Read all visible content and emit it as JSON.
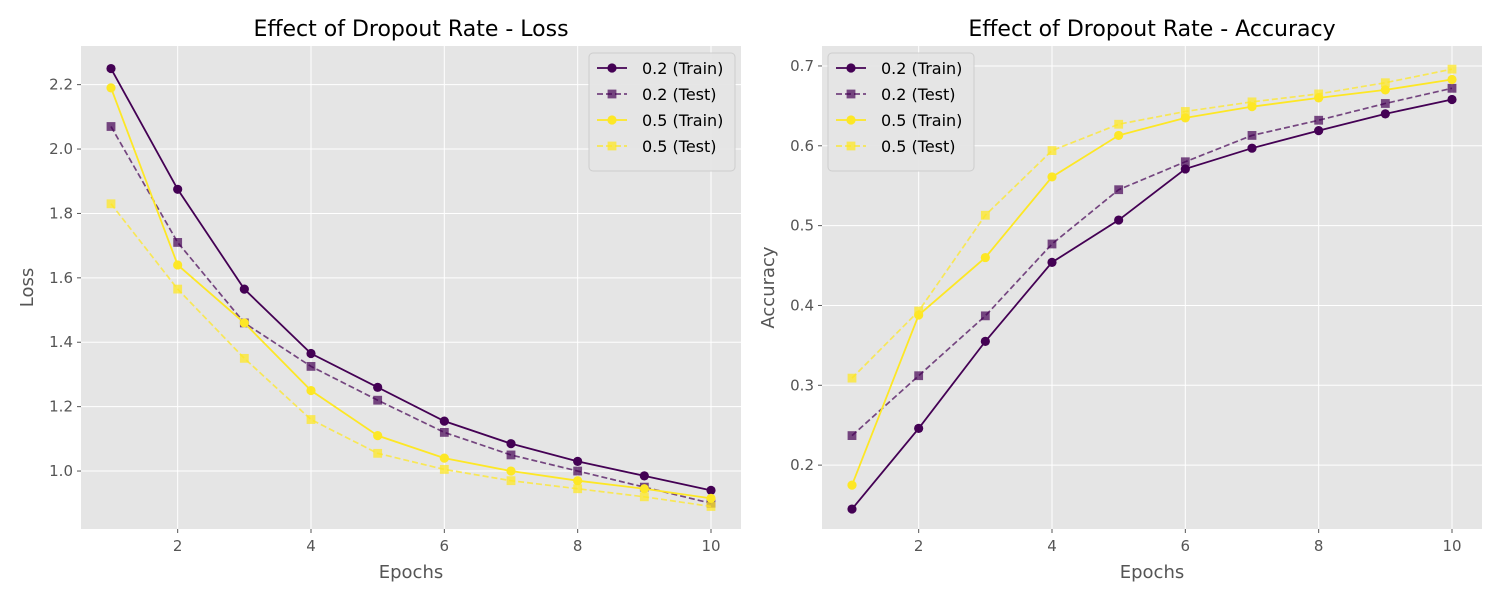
{
  "chart_data": [
    {
      "type": "line",
      "title": "Effect of Dropout Rate - Loss",
      "xlabel": "Epochs",
      "ylabel": "Loss",
      "xlim": [
        0.55,
        10.45
      ],
      "ylim": [
        0.82,
        2.32
      ],
      "xticks": [
        2,
        4,
        6,
        8,
        10
      ],
      "yticks": [
        1.0,
        1.2,
        1.4,
        1.6,
        1.8,
        2.0,
        2.2
      ],
      "grid": true,
      "legend_position": "top-right",
      "x": [
        1,
        2,
        3,
        4,
        5,
        6,
        7,
        8,
        9,
        10
      ],
      "series": [
        {
          "name": "0.2 (Train)",
          "color": "#440154",
          "style": "solid",
          "marker": "circle",
          "values": [
            2.25,
            1.875,
            1.565,
            1.365,
            1.26,
            1.155,
            1.085,
            1.03,
            0.985,
            0.94
          ]
        },
        {
          "name": "0.2 (Test)",
          "color": "#440154",
          "style": "dashed",
          "marker": "square",
          "values": [
            2.07,
            1.71,
            1.46,
            1.325,
            1.22,
            1.12,
            1.05,
            1.0,
            0.95,
            0.9
          ]
        },
        {
          "name": "0.5 (Train)",
          "color": "#fde725",
          "style": "solid",
          "marker": "circle",
          "values": [
            2.19,
            1.64,
            1.46,
            1.25,
            1.11,
            1.04,
            1.0,
            0.97,
            0.945,
            0.915
          ]
        },
        {
          "name": "0.5 (Test)",
          "color": "#fde725",
          "style": "dashed",
          "marker": "square",
          "values": [
            1.83,
            1.565,
            1.35,
            1.16,
            1.055,
            1.005,
            0.97,
            0.945,
            0.92,
            0.89
          ]
        }
      ]
    },
    {
      "type": "line",
      "title": "Effect of Dropout Rate - Accuracy",
      "xlabel": "Epochs",
      "ylabel": "Accuracy",
      "xlim": [
        0.55,
        10.45
      ],
      "ylim": [
        0.12,
        0.725
      ],
      "xticks": [
        2,
        4,
        6,
        8,
        10
      ],
      "yticks": [
        0.2,
        0.3,
        0.4,
        0.5,
        0.6,
        0.7
      ],
      "grid": true,
      "legend_position": "top-left",
      "x": [
        1,
        2,
        3,
        4,
        5,
        6,
        7,
        8,
        9,
        10
      ],
      "series": [
        {
          "name": "0.2 (Train)",
          "color": "#440154",
          "style": "solid",
          "marker": "circle",
          "values": [
            0.145,
            0.246,
            0.355,
            0.454,
            0.507,
            0.571,
            0.597,
            0.619,
            0.64,
            0.658
          ]
        },
        {
          "name": "0.2 (Test)",
          "color": "#440154",
          "style": "dashed",
          "marker": "square",
          "values": [
            0.237,
            0.312,
            0.387,
            0.477,
            0.545,
            0.58,
            0.613,
            0.632,
            0.653,
            0.672
          ]
        },
        {
          "name": "0.5 (Train)",
          "color": "#fde725",
          "style": "solid",
          "marker": "circle",
          "values": [
            0.175,
            0.388,
            0.46,
            0.561,
            0.613,
            0.635,
            0.649,
            0.66,
            0.67,
            0.683
          ]
        },
        {
          "name": "0.5 (Test)",
          "color": "#fde725",
          "style": "dashed",
          "marker": "square",
          "values": [
            0.309,
            0.393,
            0.513,
            0.594,
            0.627,
            0.643,
            0.655,
            0.665,
            0.679,
            0.696
          ]
        }
      ]
    }
  ]
}
